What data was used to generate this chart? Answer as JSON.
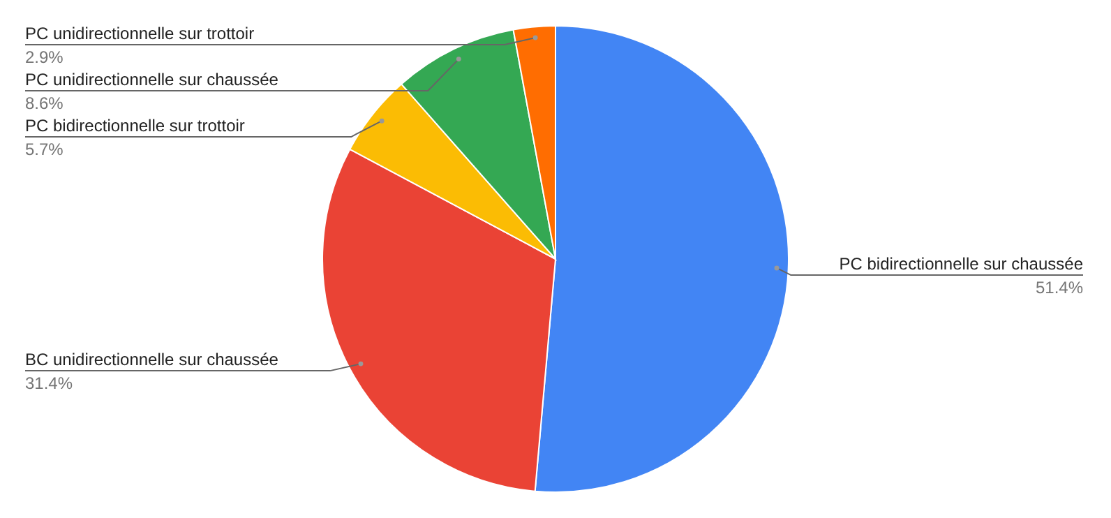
{
  "chart_data": {
    "type": "pie",
    "categories": [
      "PC bidirectionnelle sur chaussée",
      "BC unidirectionnelle sur chaussée",
      "PC bidirectionnelle sur trottoir",
      "PC unidirectionnelle sur chaussée",
      "PC unidirectionnelle sur trottoir"
    ],
    "values": [
      51.4,
      31.4,
      5.7,
      8.6,
      2.9
    ],
    "colors": [
      "#4285f4",
      "#ea4335",
      "#fbbc04",
      "#34a853",
      "#ff6d01"
    ],
    "value_labels": [
      "51.4%",
      "31.4%",
      "5.7%",
      "8.6%",
      "2.9%"
    ]
  }
}
